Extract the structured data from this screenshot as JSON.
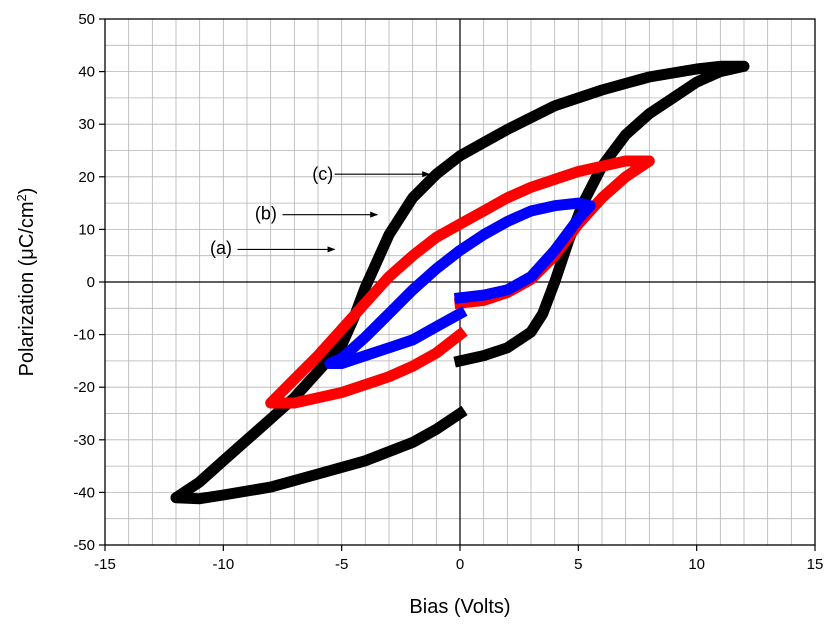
{
  "chart_data": {
    "type": "line",
    "title": "",
    "xlabel": "Bias (Volts)",
    "ylabel_main": "Polarization (μC/cm",
    "ylabel_sup": "2",
    "ylabel_close": ")",
    "xlim": [
      -15,
      15
    ],
    "ylim": [
      -50,
      50
    ],
    "xticks": [
      -15,
      -10,
      -5,
      0,
      5,
      10,
      15
    ],
    "yticks": [
      -50,
      -40,
      -30,
      -20,
      -10,
      0,
      10,
      20,
      30,
      40,
      50
    ],
    "xtick_labels": [
      "-15",
      "-10",
      "-5",
      "0",
      "5",
      "10",
      "15"
    ],
    "ytick_labels": [
      "-50",
      "-40",
      "-30",
      "-20",
      "-10",
      "0",
      "10",
      "20",
      "30",
      "40",
      "50"
    ],
    "minor_grid_step_x": 1,
    "minor_grid_step_y": 5,
    "grid": true,
    "series": [
      {
        "id": "c",
        "color": "#000000",
        "points": [
          [
            0,
            -15
          ],
          [
            1,
            -14
          ],
          [
            2,
            -12.5
          ],
          [
            3,
            -9.5
          ],
          [
            3.5,
            -6
          ],
          [
            4,
            0
          ],
          [
            4.6,
            8
          ],
          [
            5.2,
            15
          ],
          [
            6,
            22
          ],
          [
            7,
            28
          ],
          [
            8,
            32
          ],
          [
            9,
            35
          ],
          [
            10,
            38
          ],
          [
            11,
            40
          ],
          [
            12,
            41
          ],
          [
            11,
            41
          ],
          [
            10,
            40.5
          ],
          [
            8,
            39
          ],
          [
            6,
            36.5
          ],
          [
            4,
            33.5
          ],
          [
            2,
            29
          ],
          [
            1,
            26.5
          ],
          [
            0,
            24
          ],
          [
            -1,
            20.5
          ],
          [
            -2,
            16
          ],
          [
            -3,
            9
          ],
          [
            -3.5,
            4
          ],
          [
            -4,
            -1
          ],
          [
            -4.5,
            -7
          ],
          [
            -5,
            -12
          ],
          [
            -6,
            -17
          ],
          [
            -7,
            -22
          ],
          [
            -8,
            -26
          ],
          [
            -9,
            -30
          ],
          [
            -10,
            -34
          ],
          [
            -11,
            -38
          ],
          [
            -12,
            -41
          ],
          [
            -11,
            -41.2
          ],
          [
            -10,
            -40.5
          ],
          [
            -8,
            -39
          ],
          [
            -6,
            -36.5
          ],
          [
            -4,
            -34
          ],
          [
            -2,
            -30.5
          ],
          [
            -1,
            -28
          ],
          [
            0,
            -25
          ]
        ]
      },
      {
        "id": "b",
        "color": "#ff0000",
        "points": [
          [
            0,
            -4
          ],
          [
            1,
            -3.5
          ],
          [
            2,
            -2
          ],
          [
            3,
            0.5
          ],
          [
            4,
            5
          ],
          [
            5,
            11
          ],
          [
            6,
            16
          ],
          [
            7,
            20
          ],
          [
            8,
            23
          ],
          [
            7,
            23
          ],
          [
            6,
            22
          ],
          [
            5,
            21
          ],
          [
            4,
            19.5
          ],
          [
            3,
            18
          ],
          [
            2,
            16
          ],
          [
            1,
            13.5
          ],
          [
            0,
            11
          ],
          [
            -1,
            8.5
          ],
          [
            -2,
            5
          ],
          [
            -3,
            1
          ],
          [
            -4,
            -4
          ],
          [
            -5,
            -9
          ],
          [
            -6,
            -14
          ],
          [
            -7,
            -18.5
          ],
          [
            -8,
            -23
          ],
          [
            -7,
            -23
          ],
          [
            -6,
            -22
          ],
          [
            -5,
            -21
          ],
          [
            -4,
            -19.5
          ],
          [
            -3,
            -18
          ],
          [
            -2,
            -16
          ],
          [
            -1,
            -13.5
          ],
          [
            0,
            -10
          ]
        ]
      },
      {
        "id": "a",
        "color": "#0000ff",
        "points": [
          [
            0,
            -3
          ],
          [
            1,
            -2.5
          ],
          [
            2,
            -1.5
          ],
          [
            3,
            1
          ],
          [
            4,
            6
          ],
          [
            5,
            12
          ],
          [
            5.5,
            14.5
          ],
          [
            5,
            15
          ],
          [
            4,
            14.5
          ],
          [
            3,
            13.5
          ],
          [
            2,
            11.5
          ],
          [
            1,
            9
          ],
          [
            0,
            6
          ],
          [
            -1,
            2.5
          ],
          [
            -2,
            -1.5
          ],
          [
            -3,
            -6
          ],
          [
            -4,
            -10.5
          ],
          [
            -5,
            -14.5
          ],
          [
            -5.5,
            -15.5
          ],
          [
            -5,
            -15.5
          ],
          [
            -4,
            -14
          ],
          [
            -3,
            -12.5
          ],
          [
            -2,
            -11
          ],
          [
            -1,
            -8.5
          ],
          [
            0,
            -6
          ]
        ]
      }
    ],
    "annotations": [
      {
        "label": "(c)",
        "text_x": -5.8,
        "text_y": 20.5,
        "arrow_from": [
          -5.3,
          20.5
        ],
        "arrow_to": [
          -1.3,
          20.5
        ]
      },
      {
        "label": "(b)",
        "text_x": -8.2,
        "text_y": 13,
        "arrow_from": [
          -7.5,
          12.8
        ],
        "arrow_to": [
          -3.5,
          12.8
        ]
      },
      {
        "label": "(a)",
        "text_x": -10.1,
        "text_y": 6.5,
        "arrow_from": [
          -9.4,
          6.2
        ],
        "arrow_to": [
          -5.3,
          6.2
        ]
      }
    ]
  }
}
